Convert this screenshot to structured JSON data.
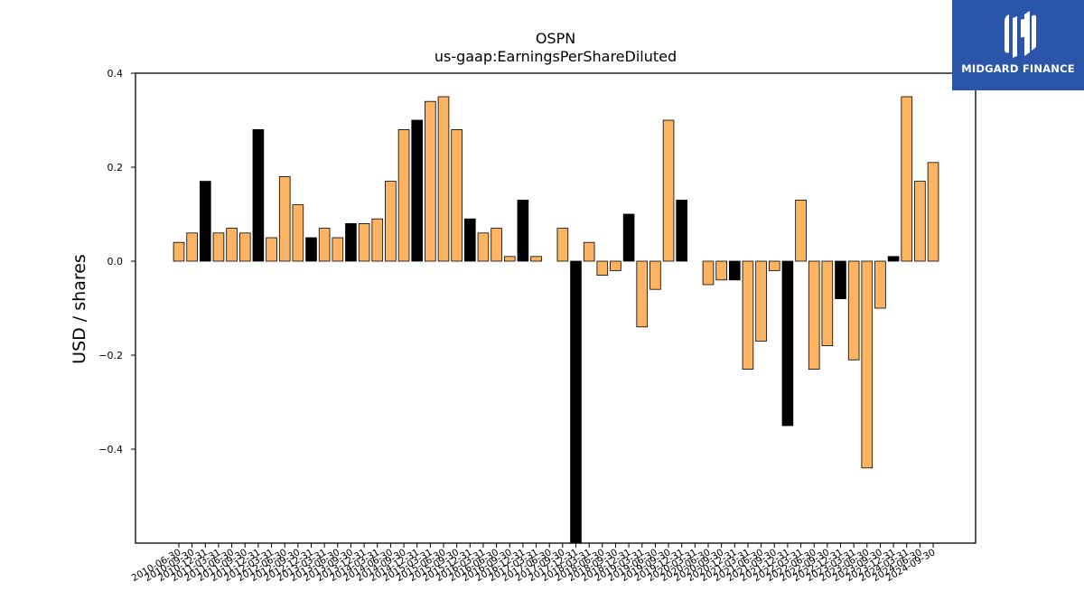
{
  "brand": {
    "name": "MIDGARD FINANCE",
    "bg_color": "#2b55a8",
    "logo_icon": "midgard-logo-icon"
  },
  "chart_data": {
    "type": "bar",
    "title": "OSPN",
    "subtitle": "us-gaap:EarningsPerShareDiluted",
    "xlabel": "",
    "ylabel": "USD / shares",
    "ylim": [
      -0.6,
      0.4
    ],
    "yticks": [
      0.4,
      0.2,
      0.0,
      -0.2,
      -0.4
    ],
    "ytick_labels": [
      "0.4",
      "0.2",
      "0.0",
      "−0.2",
      "−0.4"
    ],
    "grid": false,
    "legend": "none",
    "colors": {
      "quarterly": "#fdb462",
      "annual": "#000000",
      "edge": "#000000"
    },
    "categories": [
      "2010-06-30",
      "2010-09-30",
      "2010-12-31",
      "2011-03-31",
      "2011-06-30",
      "2011-09-30",
      "2011-12-31",
      "2012-03-31",
      "2012-06-30",
      "2012-09-30",
      "2012-12-31",
      "2013-03-31",
      "2013-06-30",
      "2013-09-30",
      "2013-12-31",
      "2014-03-31",
      "2014-06-30",
      "2014-09-30",
      "2014-12-31",
      "2015-03-31",
      "2015-06-30",
      "2015-09-30",
      "2015-12-31",
      "2016-03-31",
      "2016-06-30",
      "2016-09-30",
      "2016-12-31",
      "2017-03-31",
      "2017-06-30",
      "2017-09-30",
      "2017-12-31",
      "2018-03-31",
      "2018-06-30",
      "2018-09-30",
      "2018-12-31",
      "2019-03-31",
      "2019-06-30",
      "2019-09-30",
      "2019-12-31",
      "2020-03-31",
      "2020-06-30",
      "2020-09-30",
      "2020-12-31",
      "2021-03-31",
      "2021-06-30",
      "2021-09-30",
      "2021-12-31",
      "2022-03-31",
      "2022-06-30",
      "2022-09-30",
      "2022-12-31",
      "2023-03-31",
      "2023-06-30",
      "2023-09-30",
      "2023-12-31",
      "2024-03-31",
      "2024-06-30",
      "2024-09-30"
    ],
    "values": [
      0.04,
      0.06,
      0.17,
      0.06,
      0.07,
      0.06,
      0.28,
      0.05,
      0.18,
      0.12,
      0.05,
      0.07,
      0.05,
      0.08,
      0.08,
      0.09,
      0.17,
      0.28,
      0.3,
      0.34,
      0.35,
      0.28,
      0.09,
      0.06,
      0.07,
      0.01,
      0.13,
      0.01,
      0.0,
      0.07,
      -0.62,
      0.04,
      -0.03,
      -0.02,
      0.1,
      -0.14,
      -0.06,
      0.3,
      0.13,
      0.0,
      -0.05,
      -0.04,
      -0.04,
      -0.23,
      -0.17,
      -0.02,
      -0.35,
      0.13,
      -0.23,
      -0.18,
      -0.08,
      -0.21,
      -0.44,
      -0.1,
      0.01,
      0.35,
      0.17,
      0.21
    ],
    "annual": [
      false,
      false,
      true,
      false,
      false,
      false,
      true,
      false,
      false,
      false,
      true,
      false,
      false,
      true,
      false,
      false,
      false,
      false,
      true,
      false,
      false,
      false,
      true,
      false,
      false,
      false,
      true,
      false,
      false,
      false,
      true,
      false,
      false,
      false,
      true,
      false,
      false,
      false,
      true,
      false,
      false,
      false,
      true,
      false,
      false,
      false,
      true,
      false,
      false,
      false,
      true,
      false,
      false,
      false,
      true,
      false,
      false,
      false
    ]
  }
}
